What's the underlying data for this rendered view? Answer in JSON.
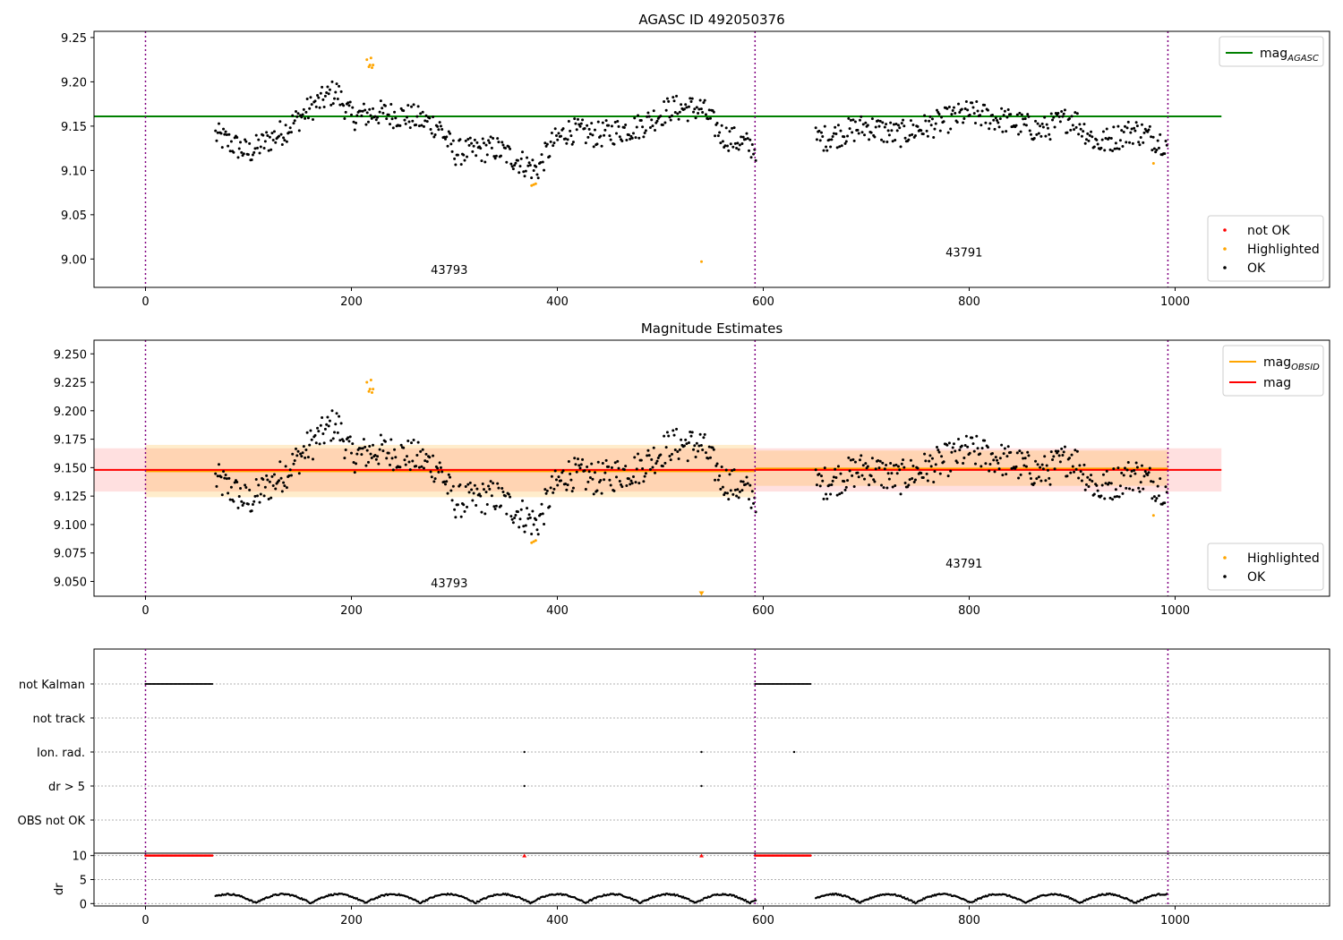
{
  "figure": {
    "title_top": "AGASC ID 492050376",
    "title_middle": "Magnitude Estimates"
  },
  "chart_data": [
    {
      "id": "top",
      "type": "scatter",
      "title": "AGASC ID 492050376",
      "xlim": [
        -50,
        1150
      ],
      "ylim": [
        8.968,
        9.257
      ],
      "xticks": [
        0,
        200,
        400,
        600,
        800,
        1000
      ],
      "yticks": [
        9.0,
        9.05,
        9.1,
        9.15,
        9.2,
        9.25
      ],
      "ytick_labels": [
        "9.00",
        "9.05",
        "9.10",
        "9.15",
        "9.20",
        "9.25"
      ],
      "obsid_boundaries": [
        0,
        592,
        993
      ],
      "obsid_labels": [
        {
          "text": "43793",
          "x": 295,
          "y": 8.983
        },
        {
          "text": "43791",
          "x": 795,
          "y": 9.003
        }
      ],
      "lines": [
        {
          "name": "mag",
          "subscript": "AGASC",
          "x": [
            -50,
            1045
          ],
          "y": 9.161,
          "color": "#008000"
        }
      ],
      "legend_lines_placement": "top-right",
      "legend_points_placement": "lower-right",
      "legend_points": [
        {
          "name": "not OK",
          "color": "#ff0000"
        },
        {
          "name": "Highlighted",
          "color": "#ffa500"
        },
        {
          "name": "OK",
          "color": "#000000"
        }
      ],
      "highlighted_points": [
        [
          215,
          9.225
        ],
        [
          217,
          9.217
        ],
        [
          218,
          9.219
        ],
        [
          219,
          9.227
        ],
        [
          220,
          9.216
        ],
        [
          221,
          9.219
        ],
        [
          375,
          9.083
        ],
        [
          377,
          9.084
        ],
        [
          379,
          9.085
        ],
        [
          540,
          8.997
        ],
        [
          979,
          9.108
        ]
      ]
    },
    {
      "id": "middle",
      "type": "scatter",
      "title": "Magnitude Estimates",
      "xlim": [
        -50,
        1150
      ],
      "ylim": [
        9.037,
        9.262
      ],
      "xticks": [
        0,
        200,
        400,
        600,
        800,
        1000
      ],
      "yticks": [
        9.05,
        9.075,
        9.1,
        9.125,
        9.15,
        9.175,
        9.2,
        9.225,
        9.25
      ],
      "ytick_labels": [
        "9.050",
        "9.075",
        "9.100",
        "9.125",
        "9.150",
        "9.175",
        "9.200",
        "9.225",
        "9.250"
      ],
      "obsid_boundaries": [
        0,
        592,
        993
      ],
      "obsid_labels": [
        {
          "text": "43793",
          "x": 295,
          "y": 9.045
        },
        {
          "text": "43791",
          "x": 795,
          "y": 9.062
        }
      ],
      "lines": [
        {
          "name": "mag",
          "subscript": "OBSID",
          "color": "#ffa500",
          "segments": [
            {
              "x": [
                0,
                592
              ],
              "y": 9.147
            },
            {
              "x": [
                592,
                993
              ],
              "y": 9.149
            }
          ]
        },
        {
          "name": "mag",
          "subscript": "",
          "color": "#ff0000",
          "x": [
            -50,
            1045
          ],
          "y": 9.148
        }
      ],
      "bands": [
        {
          "color": "#ff9999",
          "x": [
            -50,
            1045
          ],
          "y": [
            9.129,
            9.167
          ]
        },
        {
          "color": "#ffa500",
          "x": [
            0,
            592
          ],
          "y": [
            9.124,
            9.17
          ]
        },
        {
          "color": "#ffa500",
          "x": [
            592,
            993
          ],
          "y": [
            9.134,
            9.165
          ]
        }
      ],
      "legend_lines_placement": "top-right",
      "legend_points_placement": "lower-right",
      "legend_points": [
        {
          "name": "Highlighted",
          "color": "#ffa500"
        },
        {
          "name": "OK",
          "color": "#000000"
        }
      ],
      "highlighted_points": [
        [
          215,
          9.225
        ],
        [
          217,
          9.217
        ],
        [
          218,
          9.219
        ],
        [
          219,
          9.227
        ],
        [
          220,
          9.216
        ],
        [
          221,
          9.219
        ],
        [
          375,
          9.084
        ],
        [
          377,
          9.085
        ],
        [
          379,
          9.086
        ],
        [
          979,
          9.108
        ]
      ],
      "offscale_markers": [
        [
          540,
          9.039
        ]
      ]
    },
    {
      "id": "flags",
      "type": "scatter",
      "xlim": [
        -50,
        1150
      ],
      "xticks": [
        0,
        200,
        400,
        600,
        800,
        1000
      ],
      "obsid_boundaries": [
        0,
        592,
        993
      ],
      "flag_rows": [
        "not Kalman",
        "not track",
        "Ion. rad.",
        "dr > 5",
        "OBS not OK"
      ],
      "flag_points": {
        "not Kalman": {
          "ranges": [
            [
              0,
              66
            ],
            [
              592,
              646
            ]
          ]
        },
        "not track": {
          "ranges": []
        },
        "Ion. rad.": {
          "x": [
            368,
            540,
            630
          ]
        },
        "dr > 5": {
          "x": [
            368,
            540
          ]
        },
        "OBS not OK": {
          "x": []
        }
      }
    },
    {
      "id": "dr",
      "type": "scatter",
      "ylabel": "dr",
      "xlim": [
        -50,
        1150
      ],
      "ylim": [
        -0.5,
        10.5
      ],
      "xticks": [
        0,
        200,
        400,
        600,
        800,
        1000
      ],
      "yticks": [
        0,
        5,
        10
      ],
      "ytick_labels": [
        "0",
        "5",
        "10"
      ],
      "obsid_boundaries": [
        0,
        592,
        993
      ],
      "capped_value": 10,
      "capped_ranges": [
        [
          0,
          66
        ],
        [
          592,
          646
        ]
      ],
      "capped_points": [
        368,
        540
      ]
    }
  ],
  "colors": {
    "ok": "#000000",
    "highlighted": "#ffa500",
    "not_ok": "#ff0000",
    "agasc_line": "#008000",
    "obsid_line": "#ffa500",
    "mag_line": "#ff0000",
    "boundary": "#800080"
  }
}
